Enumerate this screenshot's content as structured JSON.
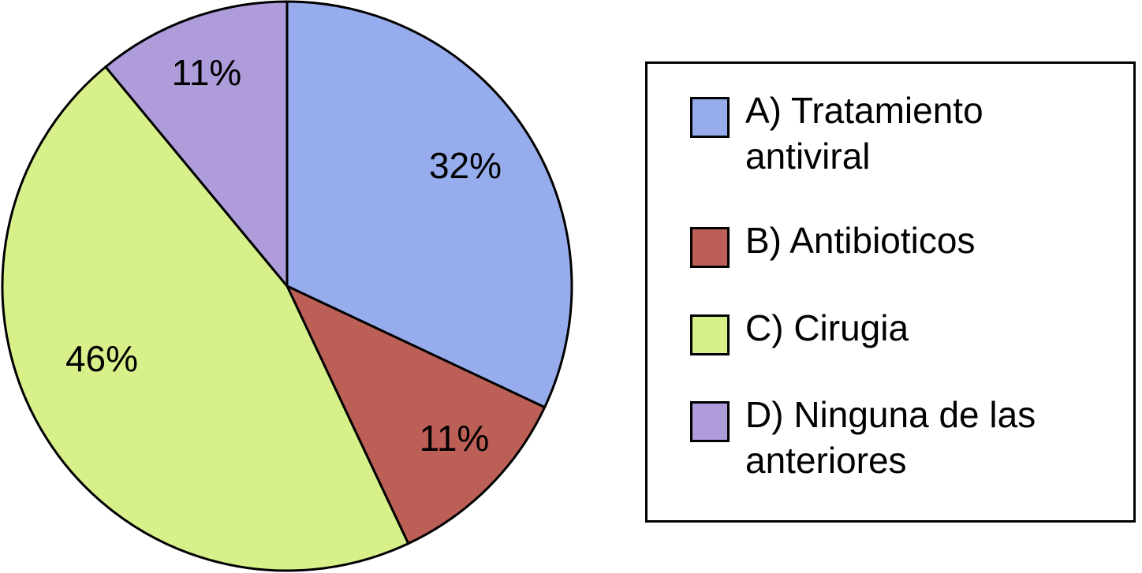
{
  "chart_data": {
    "type": "pie",
    "categories": [
      "A) Tratamiento antiviral",
      "B) Antibioticos",
      "C) Cirugia",
      "D) Ninguna de las anteriores"
    ],
    "values": [
      32,
      11,
      46,
      11
    ],
    "labels": [
      "32%",
      "11%",
      "46%",
      "11%"
    ],
    "colors": [
      "#97ACEC",
      "#BC5F56",
      "#D8F08A",
      "#AF9CDA"
    ],
    "start_angle_deg": 0,
    "direction": "clockwise",
    "legend_position": "right",
    "title": "",
    "legend": [
      {
        "label": "A) Tratamiento antiviral",
        "color": "#97ACEC"
      },
      {
        "label": "B) Antibioticos",
        "color": "#BC5F56"
      },
      {
        "label": "C) Cirugia",
        "color": "#D8F08A"
      },
      {
        "label": "D) Ninguna de las anteriores",
        "color": "#AF9CDA"
      }
    ]
  }
}
